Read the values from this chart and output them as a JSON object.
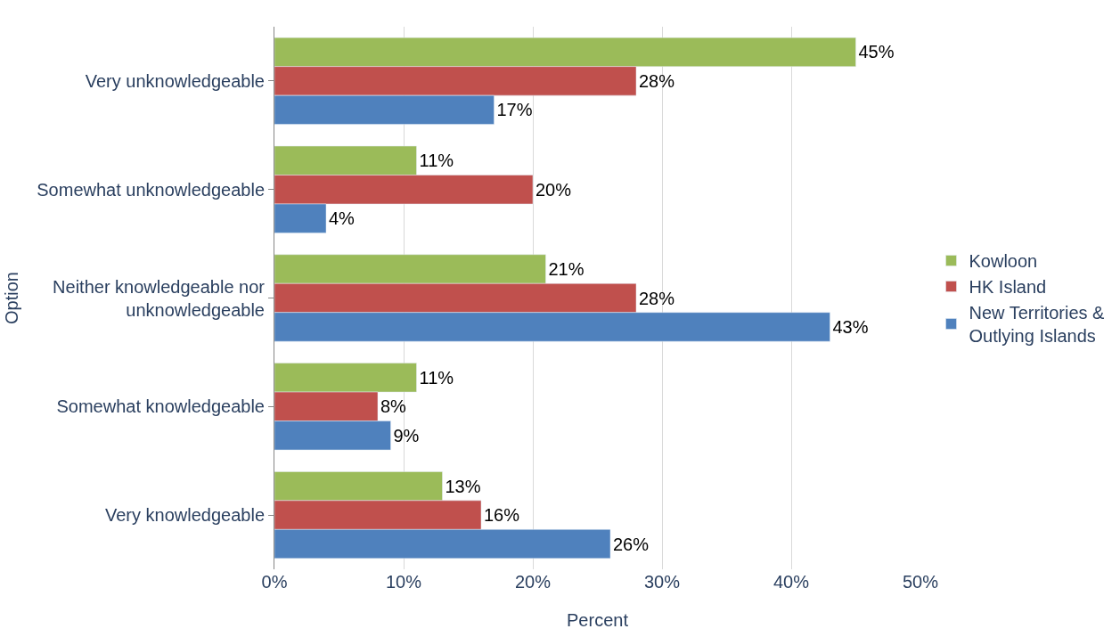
{
  "chart_data": {
    "type": "bar",
    "orientation": "horizontal",
    "xlabel": "Percent",
    "ylabel": "Option",
    "categories": [
      "Very unknowledgeable",
      "Somewhat unknowledgeable",
      "Neither knowledgeable nor\nunknowledgeable",
      "Somewhat knowledgeable",
      "Very knowledgeable"
    ],
    "series": [
      {
        "name": "Kowloon",
        "color": "#9bbb59",
        "values": [
          45,
          11,
          21,
          11,
          13
        ],
        "value_labels": [
          "45%",
          "11%",
          "21%",
          "11%",
          "13%"
        ]
      },
      {
        "name": "HK Island",
        "color": "#c0504d",
        "values": [
          28,
          20,
          28,
          8,
          16
        ],
        "value_labels": [
          "28%",
          "20%",
          "28%",
          "8%",
          "16%"
        ]
      },
      {
        "name": "New Territories &\nOutlying Islands",
        "color": "#4f81bd",
        "values": [
          17,
          4,
          43,
          9,
          26
        ],
        "value_labels": [
          "17%",
          "4%",
          "43%",
          "9%",
          "26%"
        ]
      }
    ],
    "xlim": [
      0,
      50
    ],
    "xticks": [
      {
        "value": 0,
        "label": "0%"
      },
      {
        "value": 10,
        "label": "10%"
      },
      {
        "value": 20,
        "label": "20%"
      },
      {
        "value": 30,
        "label": "30%"
      },
      {
        "value": 40,
        "label": "40%"
      },
      {
        "value": 50,
        "label": "50%"
      }
    ],
    "grid": "x",
    "legend": "right"
  }
}
